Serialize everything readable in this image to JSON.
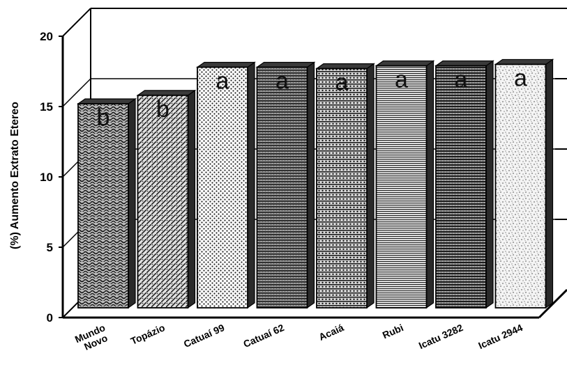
{
  "chart_data": {
    "type": "bar",
    "ylabel": "(%) Aumento Extrato Etereo",
    "xlabel": "",
    "ylim": [
      0,
      20
    ],
    "yticks": [
      0,
      5,
      10,
      15,
      20
    ],
    "categories": [
      "Mundo Novo",
      "Topázio",
      "Catuaí 99",
      "Catuaí 62",
      "Acaiá",
      "Rubi",
      "Icatu 3282",
      "Icatu 2944"
    ],
    "values": [
      15.0,
      15.6,
      17.6,
      17.6,
      17.5,
      17.7,
      17.7,
      17.8
    ],
    "significance_letters": [
      "b",
      "b",
      "a",
      "a",
      "a",
      "a",
      "a",
      "a"
    ],
    "grid": true,
    "style": "3d-bar, hatched patterns, black and white"
  }
}
